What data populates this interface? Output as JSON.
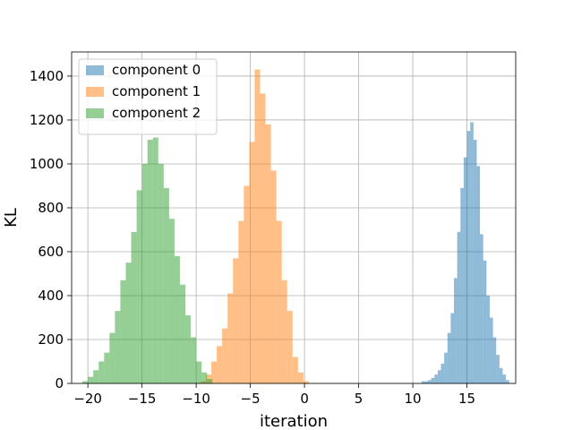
{
  "chart_data": {
    "type": "bar",
    "title": "",
    "xlabel": "iteration",
    "ylabel": "KL",
    "xlim": [
      -21.5,
      19.5
    ],
    "ylim": [
      0,
      1510
    ],
    "xticks": [
      -20,
      -15,
      -10,
      -5,
      0,
      5,
      10,
      15
    ],
    "yticks": [
      0,
      200,
      400,
      600,
      800,
      1000,
      1200,
      1400
    ],
    "grid": true,
    "legend_position": "top-left",
    "series": [
      {
        "name": "component 0",
        "color": "#1f77b4",
        "alpha": 0.5,
        "bins": [
          [
            10.8,
            11.1,
            10
          ],
          [
            11.1,
            11.4,
            10
          ],
          [
            11.4,
            11.7,
            15
          ],
          [
            11.7,
            12.0,
            25
          ],
          [
            12.0,
            12.3,
            40
          ],
          [
            12.3,
            12.6,
            60
          ],
          [
            12.6,
            12.9,
            90
          ],
          [
            12.9,
            13.2,
            140
          ],
          [
            13.2,
            13.5,
            230
          ],
          [
            13.5,
            13.8,
            320
          ],
          [
            13.8,
            14.1,
            480
          ],
          [
            14.1,
            14.4,
            690
          ],
          [
            14.4,
            14.7,
            890
          ],
          [
            14.7,
            15.0,
            1030
          ],
          [
            15.0,
            15.3,
            1150
          ],
          [
            15.3,
            15.6,
            1190
          ],
          [
            15.6,
            15.9,
            1110
          ],
          [
            15.9,
            16.2,
            990
          ],
          [
            16.2,
            16.5,
            680
          ],
          [
            16.5,
            16.8,
            560
          ],
          [
            16.8,
            17.1,
            400
          ],
          [
            17.1,
            17.4,
            300
          ],
          [
            17.4,
            17.7,
            210
          ],
          [
            17.7,
            18.0,
            130
          ],
          [
            18.0,
            18.3,
            70
          ],
          [
            18.3,
            18.6,
            40
          ],
          [
            18.6,
            18.9,
            15
          ]
        ]
      },
      {
        "name": "component 1",
        "color": "#ff7f0e",
        "alpha": 0.5,
        "bins": [
          [
            -9.6,
            -9.1,
            10
          ],
          [
            -9.1,
            -8.6,
            40
          ],
          [
            -8.6,
            -8.1,
            100
          ],
          [
            -8.1,
            -7.6,
            170
          ],
          [
            -7.6,
            -7.1,
            250
          ],
          [
            -7.1,
            -6.6,
            410
          ],
          [
            -6.6,
            -6.1,
            570
          ],
          [
            -6.1,
            -5.6,
            740
          ],
          [
            -5.6,
            -5.1,
            900
          ],
          [
            -5.1,
            -4.6,
            1100
          ],
          [
            -4.6,
            -4.1,
            1430
          ],
          [
            -4.1,
            -3.6,
            1320
          ],
          [
            -3.6,
            -3.1,
            1180
          ],
          [
            -3.1,
            -2.6,
            970
          ],
          [
            -2.6,
            -2.1,
            740
          ],
          [
            -2.1,
            -1.6,
            470
          ],
          [
            -1.6,
            -1.1,
            330
          ],
          [
            -1.1,
            -0.6,
            120
          ],
          [
            -0.6,
            -0.1,
            50
          ],
          [
            -0.1,
            0.4,
            10
          ]
        ]
      },
      {
        "name": "component 2",
        "color": "#2ca02c",
        "alpha": 0.5,
        "bins": [
          [
            -20.5,
            -20.0,
            10
          ],
          [
            -20.0,
            -19.5,
            30
          ],
          [
            -19.5,
            -19.0,
            60
          ],
          [
            -19.0,
            -18.5,
            100
          ],
          [
            -18.5,
            -18.0,
            140
          ],
          [
            -18.0,
            -17.5,
            230
          ],
          [
            -17.5,
            -17.0,
            330
          ],
          [
            -17.0,
            -16.5,
            470
          ],
          [
            -16.5,
            -16.0,
            550
          ],
          [
            -16.0,
            -15.5,
            690
          ],
          [
            -15.5,
            -15.0,
            880
          ],
          [
            -15.0,
            -14.5,
            1000
          ],
          [
            -14.5,
            -14.0,
            1110
          ],
          [
            -14.0,
            -13.5,
            1120
          ],
          [
            -13.5,
            -13.0,
            1000
          ],
          [
            -13.0,
            -12.5,
            890
          ],
          [
            -12.5,
            -12.0,
            750
          ],
          [
            -12.0,
            -11.5,
            580
          ],
          [
            -11.5,
            -11.0,
            450
          ],
          [
            -11.0,
            -10.5,
            310
          ],
          [
            -10.5,
            -10.0,
            210
          ],
          [
            -10.0,
            -9.5,
            100
          ],
          [
            -9.5,
            -9.0,
            50
          ],
          [
            -9.0,
            -8.5,
            20
          ]
        ]
      }
    ]
  }
}
